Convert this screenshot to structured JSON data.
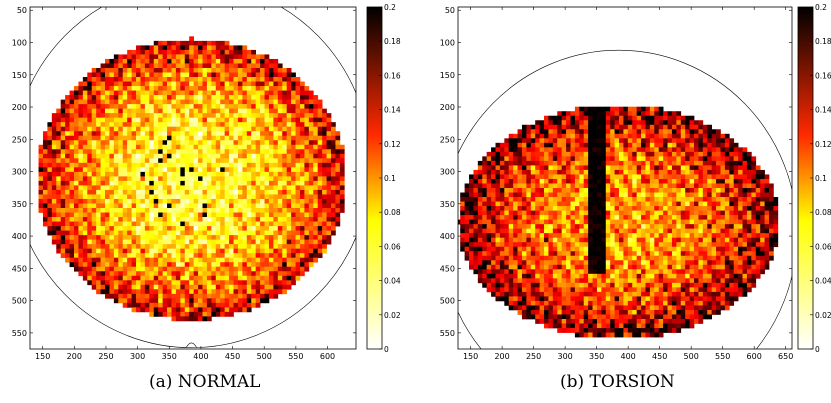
{
  "chart_data": [
    {
      "type": "heatmap",
      "caption": "(a) NORMAL",
      "xlim": [
        130,
        645
      ],
      "ylim": [
        45,
        575
      ],
      "x_ticks": [
        150,
        200,
        250,
        300,
        350,
        400,
        450,
        500,
        550,
        600
      ],
      "y_ticks": [
        50,
        100,
        150,
        200,
        250,
        300,
        350,
        400,
        450,
        500,
        550
      ],
      "colorbar": {
        "min": 0,
        "max": 0.2,
        "ticks": [
          0,
          0.02,
          0.04,
          0.06,
          0.08,
          0.1,
          0.12,
          0.14,
          0.16,
          0.18,
          0.2
        ],
        "colormap": "hot (reversed)"
      },
      "outline": {
        "cx": 385,
        "cy": 290,
        "r": 283,
        "notch_x": 385
      },
      "region": {
        "cx": 385,
        "cy": 312,
        "rx": 245,
        "ry": 218,
        "center_value": 0.06,
        "edge_value": 0.16
      }
    },
    {
      "type": "heatmap",
      "caption": "(b) TORSION",
      "xlim": [
        130,
        660
      ],
      "ylim": [
        45,
        575
      ],
      "x_ticks": [
        150,
        200,
        250,
        300,
        350,
        400,
        450,
        500,
        550,
        600,
        650
      ],
      "y_ticks": [
        50,
        100,
        150,
        200,
        250,
        300,
        350,
        400,
        450,
        500,
        550
      ],
      "colorbar": {
        "min": 0,
        "max": 0.2,
        "ticks": [
          0,
          0.02,
          0.04,
          0.06,
          0.08,
          0.1,
          0.12,
          0.14,
          0.16,
          0.18,
          0.2
        ],
        "colormap": "hot (reversed)"
      },
      "outline": {
        "cx": 385,
        "cy": 395,
        "r": 283
      },
      "region": {
        "cx": 385,
        "cy": 378,
        "rx": 255,
        "ry": 182,
        "center_value": 0.1,
        "edge_value": 0.18
      },
      "dark_band": {
        "x": [
          340,
          365
        ],
        "y": [
          200,
          460
        ]
      }
    }
  ],
  "captions": {
    "a": "(a) NORMAL",
    "b": "(b) TORSION"
  }
}
